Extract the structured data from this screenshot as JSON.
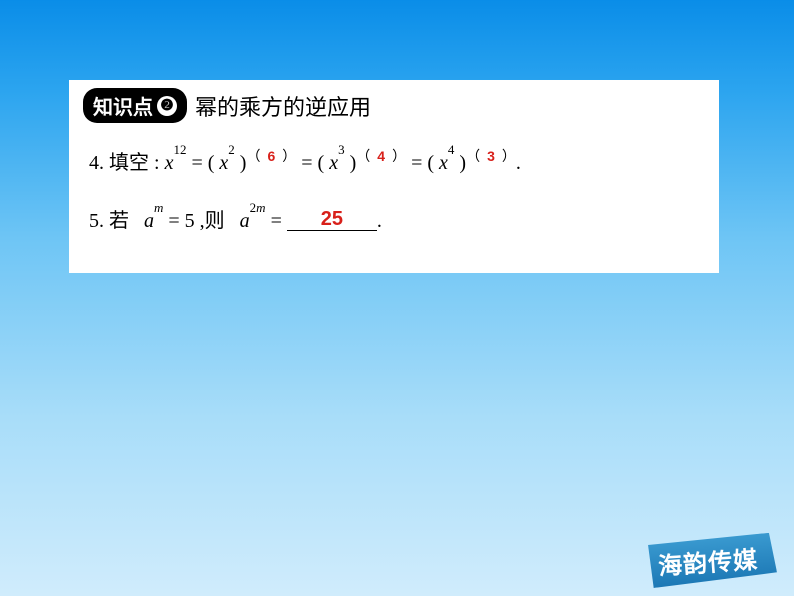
{
  "header": {
    "badge_label": "知识点",
    "badge_num": "❷",
    "title": "幂的乘方的逆应用"
  },
  "problem4": {
    "num": "4.",
    "label": "填空",
    "colon": ":",
    "base": "x",
    "exp_main": "12",
    "eq1_base": "x",
    "eq1_inner_exp": "2",
    "ans1": "6",
    "eq2_base": "x",
    "eq2_inner_exp": "3",
    "ans2": "4",
    "eq3_base": "x",
    "eq3_inner_exp": "4",
    "ans3": "3",
    "period": "."
  },
  "problem5": {
    "num": "5.",
    "label": "若",
    "base1": "a",
    "exp1": "m",
    "eq1_val": "5",
    "mid": ",则",
    "base2": "a",
    "exp2": "2m",
    "ans": "25",
    "period": "."
  },
  "logo": {
    "text": "海韵传媒"
  },
  "colors": {
    "answer_red": "#d8201a",
    "badge_bg": "#000000",
    "logo_bg": "#2E8BC0"
  }
}
